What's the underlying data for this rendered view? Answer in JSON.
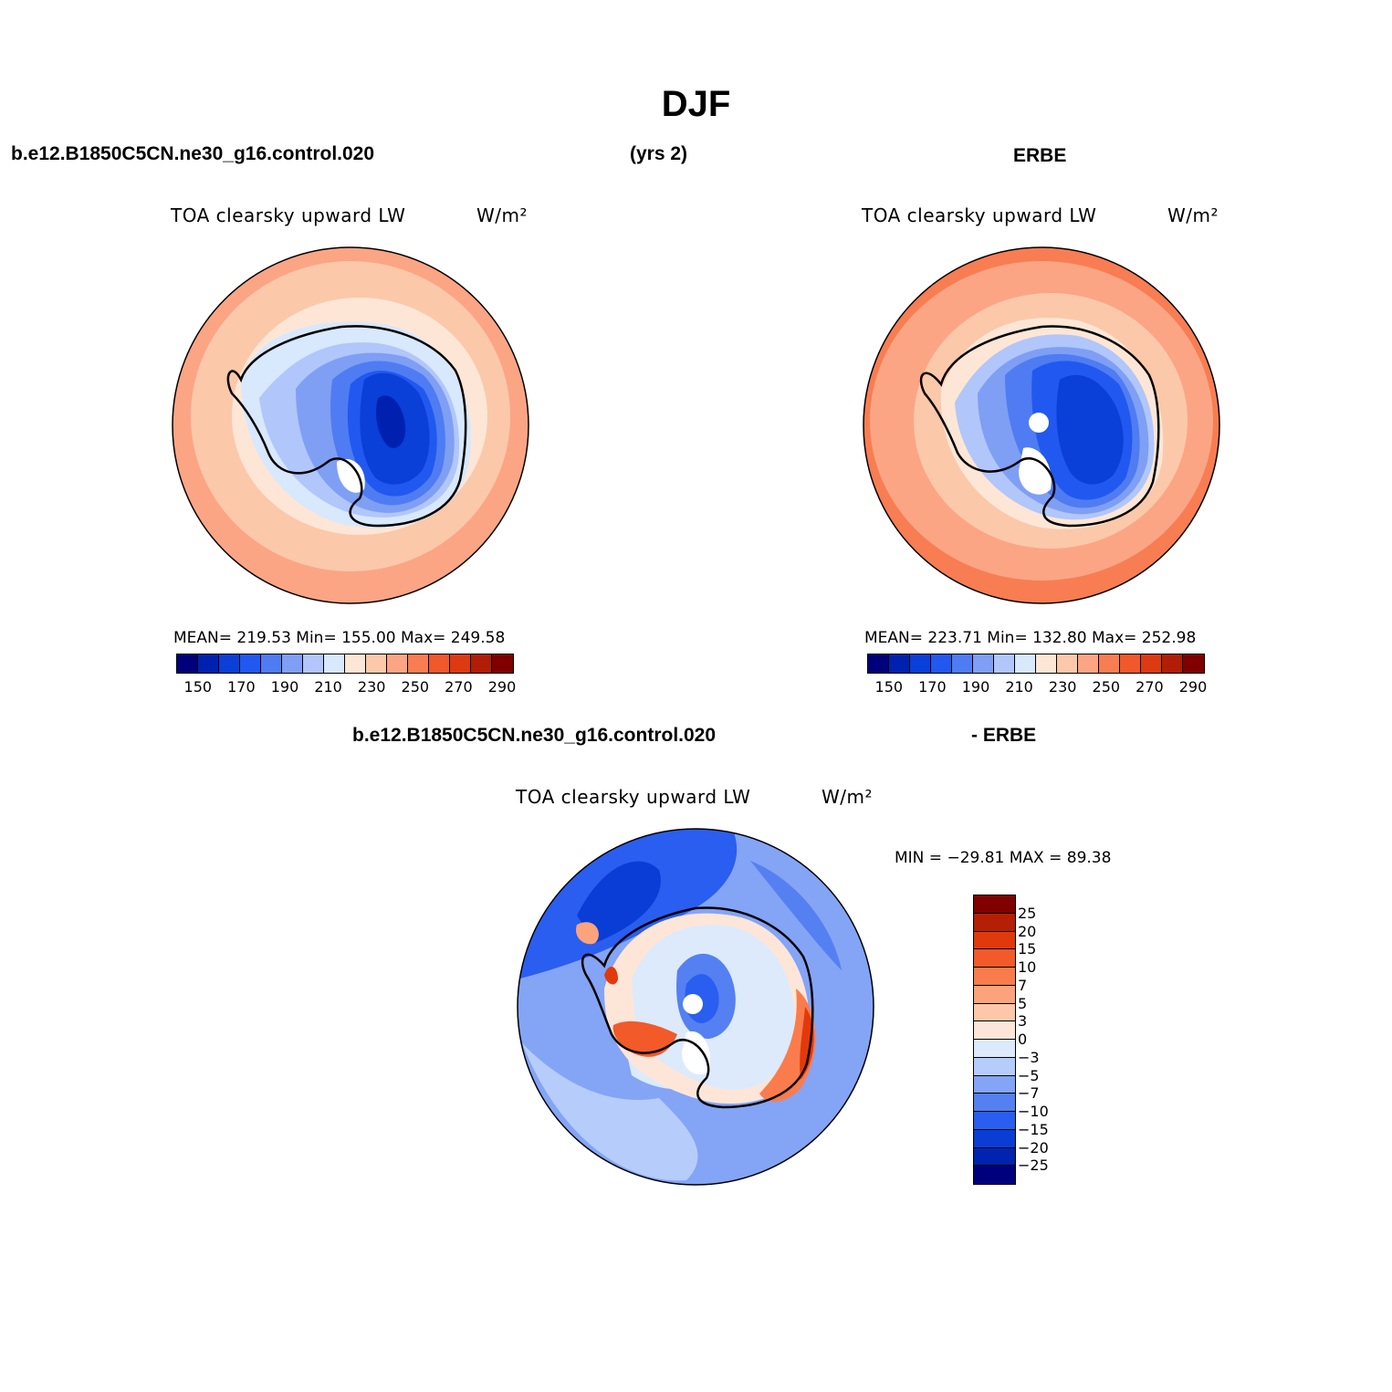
{
  "figure": {
    "title": "DJF",
    "header_left": "b.e12.B1850C5CN.ne30_g16.control.020",
    "header_mid": "(yrs 2)",
    "header_right": "ERBE",
    "diff_header_left": "b.e12.B1850C5CN.ne30_g16.control.020",
    "diff_header_right": "- ERBE"
  },
  "panels": {
    "model": {
      "title": "TOA clearsky upward LW",
      "units": "W/m²",
      "stats": "MEAN= 219.53   Min= 155.00   Max= 249.58"
    },
    "obs": {
      "title": "TOA clearsky upward LW",
      "units": "W/m²",
      "stats": "MEAN= 223.71   Min= 132.80   Max= 252.98"
    },
    "diff": {
      "title": "TOA clearsky upward LW",
      "units": "W/m²",
      "minmax": "MIN = −29.81  MAX =   89.38"
    }
  },
  "colors": {
    "abs_bar": [
      "#00007a",
      "#0021b0",
      "#0a3fd8",
      "#2158f0",
      "#4f7cf2",
      "#7f9ff5",
      "#b1c6fa",
      "#d8e8fd",
      "#fde6d6",
      "#fcc8aa",
      "#fba585",
      "#f87d52",
      "#f1582b",
      "#dc3a12",
      "#b11d06",
      "#800000"
    ],
    "diff_bar": [
      "#800000",
      "#b51f06",
      "#e2390c",
      "#f25a2a",
      "#fa7c4c",
      "#fca37c",
      "#fdc8aa",
      "#fde6d8",
      "#dceafc",
      "#b6ccfb",
      "#84a4f6",
      "#5580f2",
      "#2a5ef0",
      "#0a3dd6",
      "#0024b0",
      "#00007e"
    ]
  },
  "chart_data": [
    {
      "type": "heatmap",
      "name": "model",
      "title": "TOA clearsky upward LW",
      "units": "W/m²",
      "colorbar_ticks": [
        "150",
        "170",
        "190",
        "210",
        "230",
        "250",
        "270",
        "290"
      ],
      "mean": 219.53,
      "min": 155.0,
      "max": 249.58
    },
    {
      "type": "heatmap",
      "name": "ERBE",
      "title": "TOA clearsky upward LW",
      "units": "W/m²",
      "colorbar_ticks": [
        "150",
        "170",
        "190",
        "210",
        "230",
        "250",
        "270",
        "290"
      ],
      "mean": 223.71,
      "min": 132.8,
      "max": 252.98
    },
    {
      "type": "heatmap",
      "name": "model - ERBE",
      "title": "TOA clearsky upward LW",
      "units": "W/m²",
      "colorbar_ticks": [
        "25",
        "20",
        "15",
        "10",
        "7",
        "5",
        "3",
        "0",
        "−3",
        "−5",
        "−7",
        "−10",
        "−15",
        "−20",
        "−25"
      ],
      "min": -29.81,
      "max": 89.38
    }
  ]
}
